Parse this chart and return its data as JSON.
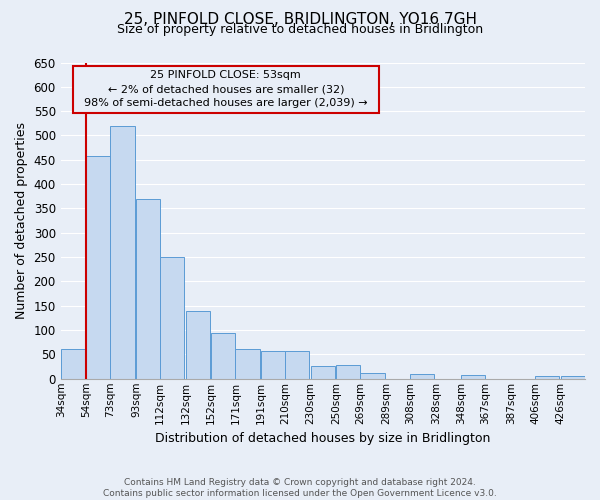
{
  "title": "25, PINFOLD CLOSE, BRIDLINGTON, YO16 7GH",
  "subtitle": "Size of property relative to detached houses in Bridlington",
  "xlabel": "Distribution of detached houses by size in Bridlington",
  "ylabel": "Number of detached properties",
  "bar_labels": [
    "34sqm",
    "54sqm",
    "73sqm",
    "93sqm",
    "112sqm",
    "132sqm",
    "152sqm",
    "171sqm",
    "191sqm",
    "210sqm",
    "230sqm",
    "250sqm",
    "269sqm",
    "289sqm",
    "308sqm",
    "328sqm",
    "348sqm",
    "367sqm",
    "387sqm",
    "406sqm",
    "426sqm"
  ],
  "bar_values": [
    62,
    457,
    520,
    370,
    250,
    140,
    95,
    62,
    58,
    58,
    27,
    28,
    12,
    0,
    10,
    0,
    8,
    0,
    0,
    5,
    5
  ],
  "bar_color": "#c6d9f0",
  "bar_edge_color": "#5b9bd5",
  "ylim": [
    0,
    650
  ],
  "yticks": [
    0,
    50,
    100,
    150,
    200,
    250,
    300,
    350,
    400,
    450,
    500,
    550,
    600,
    650
  ],
  "property_line_x": 54,
  "property_line_color": "#cc0000",
  "annotation_title": "25 PINFOLD CLOSE: 53sqm",
  "annotation_line1": "← 2% of detached houses are smaller (32)",
  "annotation_line2": "98% of semi-detached houses are larger (2,039) →",
  "annotation_box_color": "#cc0000",
  "footer_line1": "Contains HM Land Registry data © Crown copyright and database right 2024.",
  "footer_line2": "Contains public sector information licensed under the Open Government Licence v3.0.",
  "background_color": "#e8eef7",
  "grid_color": "#ffffff",
  "bin_starts": [
    34,
    54,
    73,
    93,
    112,
    132,
    152,
    171,
    191,
    210,
    230,
    250,
    269,
    289,
    308,
    328,
    348,
    367,
    387,
    406,
    426
  ],
  "bin_width": 19
}
